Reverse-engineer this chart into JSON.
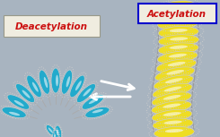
{
  "background_color": "#a8b4c0",
  "deacetylation_label": "Deacetylation",
  "acetylation_label": "Acetylation",
  "deacetylation_box_facecolor": "#f0ede0",
  "deacetylation_box_edgecolor": "#999988",
  "deacetylation_text_color": "#cc1111",
  "acetylation_box_facecolor": "#f0ede0",
  "acetylation_box_edgecolor": "#0000cc",
  "acetylation_text_color": "#cc1111",
  "nucleosome_closed_color": "#22aacc",
  "nucleosome_closed_edge": "#cccccc",
  "nucleosome_open_color": "#eedd22",
  "nucleosome_open_edge": "#cccccc",
  "dna_color": "#aaaaaa",
  "arrow_color": "#ffffff",
  "fig_width": 2.45,
  "fig_height": 1.53,
  "dpi": 100
}
